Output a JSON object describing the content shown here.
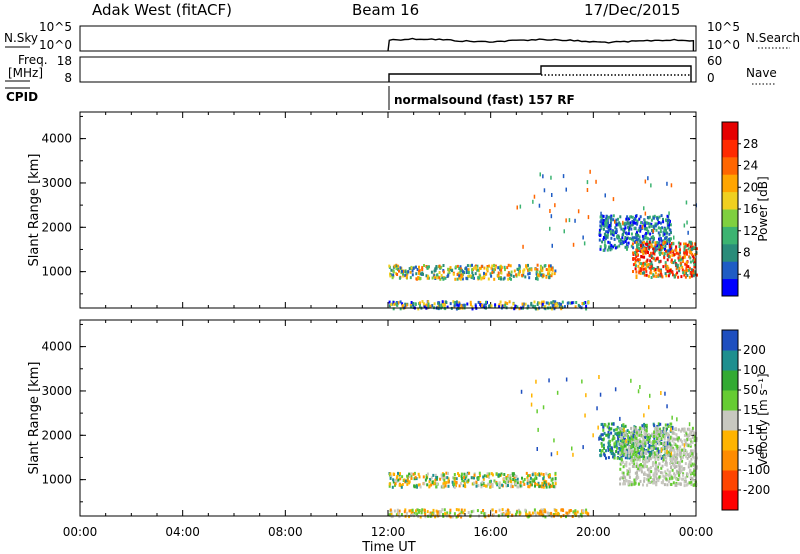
{
  "header": {
    "station": "Adak West (fitACF)",
    "beam": "Beam 16",
    "date": "17/Dec/2015"
  },
  "strip": {
    "nsky_label": "N.Sky",
    "nsky_ticks": [
      "10^5",
      "10^0"
    ],
    "nsearch_label": "N.Search",
    "freq_label_1": "Freq.",
    "freq_label_2": "[MHz]",
    "freq_ticks": [
      "18",
      "8"
    ],
    "nave_ticks": [
      "60",
      "0"
    ],
    "nave_label": "Nave",
    "cpid_label": "CPID",
    "cpid_text": "normalsound (fast) 157 RF"
  },
  "chart_data": [
    {
      "type": "heatmap",
      "name": "power-panel",
      "xlabel": "",
      "ylabel": "Slant Range [km]",
      "x_ticks": [
        "00:00",
        "04:00",
        "08:00",
        "12:00",
        "16:00",
        "20:00",
        "00:00"
      ],
      "y_ticks": [
        "1000",
        "2000",
        "3000",
        "4000"
      ],
      "ylim": [
        180,
        4600
      ],
      "colorbar_label": "Power [dB]",
      "colorbar_ticks": [
        "28",
        "24",
        "20",
        "16",
        "12",
        "8",
        "4"
      ],
      "colorbar_colors": [
        "#0000ff",
        "#1f5cc4",
        "#2a8c7a",
        "#3cb371",
        "#7fd040",
        "#f0d020",
        "#ffa500",
        "#ff6600",
        "#ff2a00",
        "#e60000"
      ],
      "bands": [
        {
          "x": [
            12.0,
            18.5
          ],
          "y": [
            860,
            1180
          ],
          "dominant": "orange-green"
        },
        {
          "x": [
            12.0,
            19.8
          ],
          "y": [
            190,
            360
          ],
          "dominant": "blue-mixed"
        },
        {
          "x": [
            20.2,
            23.0
          ],
          "y": [
            1500,
            2300
          ],
          "dominant": "blue"
        },
        {
          "x": [
            21.5,
            24.0
          ],
          "y": [
            900,
            1700
          ],
          "dominant": "red-orange"
        }
      ]
    },
    {
      "type": "heatmap",
      "name": "velocity-panel",
      "xlabel": "Time UT",
      "ylabel": "Slant Range [km]",
      "x_ticks": [
        "00:00",
        "04:00",
        "08:00",
        "12:00",
        "16:00",
        "20:00",
        "00:00"
      ],
      "y_ticks": [
        "1000",
        "2000",
        "3000",
        "4000"
      ],
      "ylim": [
        180,
        4600
      ],
      "colorbar_label": "Velocity [m s⁻¹]",
      "colorbar_ticks": [
        "200",
        "100",
        "50",
        "15",
        "-15",
        "-50",
        "-100",
        "-200"
      ],
      "colorbar_colors": [
        "#ff0000",
        "#ff4500",
        "#ff8c00",
        "#ffb400",
        "#c8c8c0",
        "#66cc33",
        "#33aa33",
        "#1f8f8f",
        "#1f4fbf"
      ],
      "bands": [
        {
          "x": [
            12.0,
            18.5
          ],
          "y": [
            860,
            1180
          ],
          "dominant": "green-gray"
        },
        {
          "x": [
            12.0,
            19.8
          ],
          "y": [
            190,
            360
          ],
          "dominant": "orange"
        },
        {
          "x": [
            20.2,
            23.0
          ],
          "y": [
            1500,
            2300
          ],
          "dominant": "blue-green"
        },
        {
          "x": [
            21.0,
            24.0
          ],
          "y": [
            900,
            2200
          ],
          "dominant": "gray"
        }
      ]
    }
  ]
}
